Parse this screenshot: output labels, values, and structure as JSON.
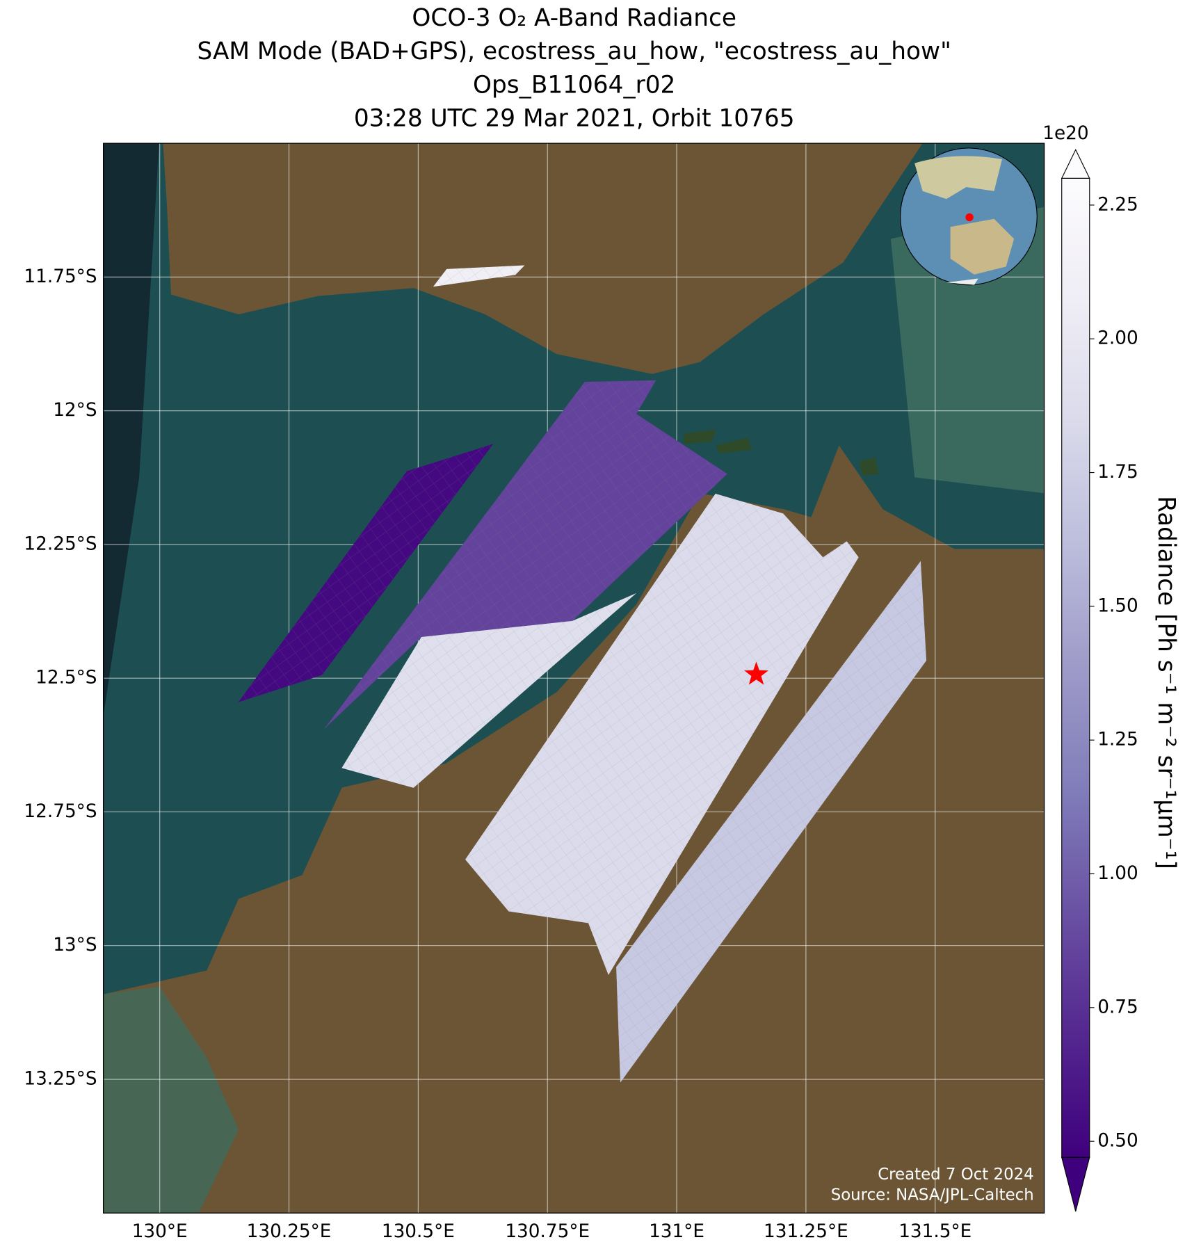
{
  "chart_data": {
    "type": "map",
    "title": [
      "OCO-3 O₂ A-Band Radiance",
      "SAM Mode (BAD+GPS), ecostress_au_how, \"ecostress_au_how\"",
      "Ops_B11064_r02",
      "03:28 UTC 29 Mar 2021, Orbit 10765"
    ],
    "xlim": [
      129.891,
      131.711
    ],
    "ylim": [
      -13.5,
      -11.5
    ],
    "xticks": [
      {
        "value": 130,
        "label": "130°E"
      },
      {
        "value": 130.25,
        "label": "130.25°E"
      },
      {
        "value": 130.5,
        "label": "130.5°E"
      },
      {
        "value": 130.75,
        "label": "130.75°E"
      },
      {
        "value": 131,
        "label": "131°E"
      },
      {
        "value": 131.25,
        "label": "131.25°E"
      },
      {
        "value": 131.5,
        "label": "131.5°E"
      }
    ],
    "yticks": [
      {
        "value": -11.75,
        "label": "11.75°S"
      },
      {
        "value": -12,
        "label": "12°S"
      },
      {
        "value": -12.25,
        "label": "12.25°S"
      },
      {
        "value": -12.5,
        "label": "12.5°S"
      },
      {
        "value": -12.75,
        "label": "12.75°S"
      },
      {
        "value": -13,
        "label": "13°S"
      },
      {
        "value": -13.25,
        "label": "13.25°S"
      }
    ],
    "grid": true,
    "colorbar": {
      "label": "Radiance [Ph s⁻¹ m⁻² sr⁻¹μm⁻¹]",
      "scale_label": "1e20",
      "lim": [
        0.47,
        2.3
      ],
      "ticks": [
        {
          "value": 0.5,
          "label": "0.50"
        },
        0.75,
        {
          "value": 1,
          "label": "1.00"
        },
        1.25,
        {
          "value": 1.5,
          "label": "1.50"
        },
        1.75,
        {
          "value": 2,
          "label": "2.00"
        },
        2.25
      ],
      "colormap": [
        "#3f007d",
        "#54278f",
        "#6a51a3",
        "#807dba",
        "#9e9ac8",
        "#bcbddc",
        "#dadaeb",
        "#efedf5",
        "#fcfbfd"
      ],
      "extend": "both"
    },
    "swaths": [
      {
        "lon": [
          130.152,
          130.478,
          130.645,
          130.314
        ],
        "lat": [
          -12.545,
          -12.113,
          -12.062,
          -12.494
        ],
        "radiance": 0.52
      },
      {
        "lon": [
          130.318,
          130.822,
          130.96,
          130.922,
          131.098,
          130.798,
          130.506
        ],
        "lat": [
          -12.595,
          -11.946,
          -11.943,
          -12.006,
          -12.118,
          -12.393,
          -12.423
        ],
        "radiance": 0.85
      },
      {
        "lon": [
          130.352,
          130.506,
          130.798,
          130.922,
          130.491
        ],
        "lat": [
          -12.668,
          -12.423,
          -12.393,
          -12.341,
          -12.705
        ],
        "radiance": 1.9
      },
      {
        "lon": [
          130.591,
          131.075,
          131.206,
          131.283,
          131.329,
          131.352,
          130.868,
          130.829,
          130.675
        ],
        "lat": [
          -12.839,
          -12.155,
          -12.192,
          -12.274,
          -12.244,
          -12.274,
          -13.055,
          -12.958,
          -12.936
        ],
        "radiance": 1.85
      },
      {
        "lon": [
          130.891,
          130.883,
          131.472,
          131.483
        ],
        "lat": [
          -13.256,
          -13.04,
          -12.281,
          -12.467
        ],
        "radiance": 1.7
      },
      {
        "lon": [
          130.529,
          130.555,
          130.706,
          130.688
        ],
        "lat": [
          -11.768,
          -11.735,
          -11.728,
          -11.746
        ],
        "radiance": 2.1
      }
    ],
    "target": {
      "lon": 131.154,
      "lat": -12.493,
      "color": "red"
    },
    "credits": [
      "Created 7 Oct 2024",
      "Source: NASA/JPL-Caltech"
    ]
  }
}
